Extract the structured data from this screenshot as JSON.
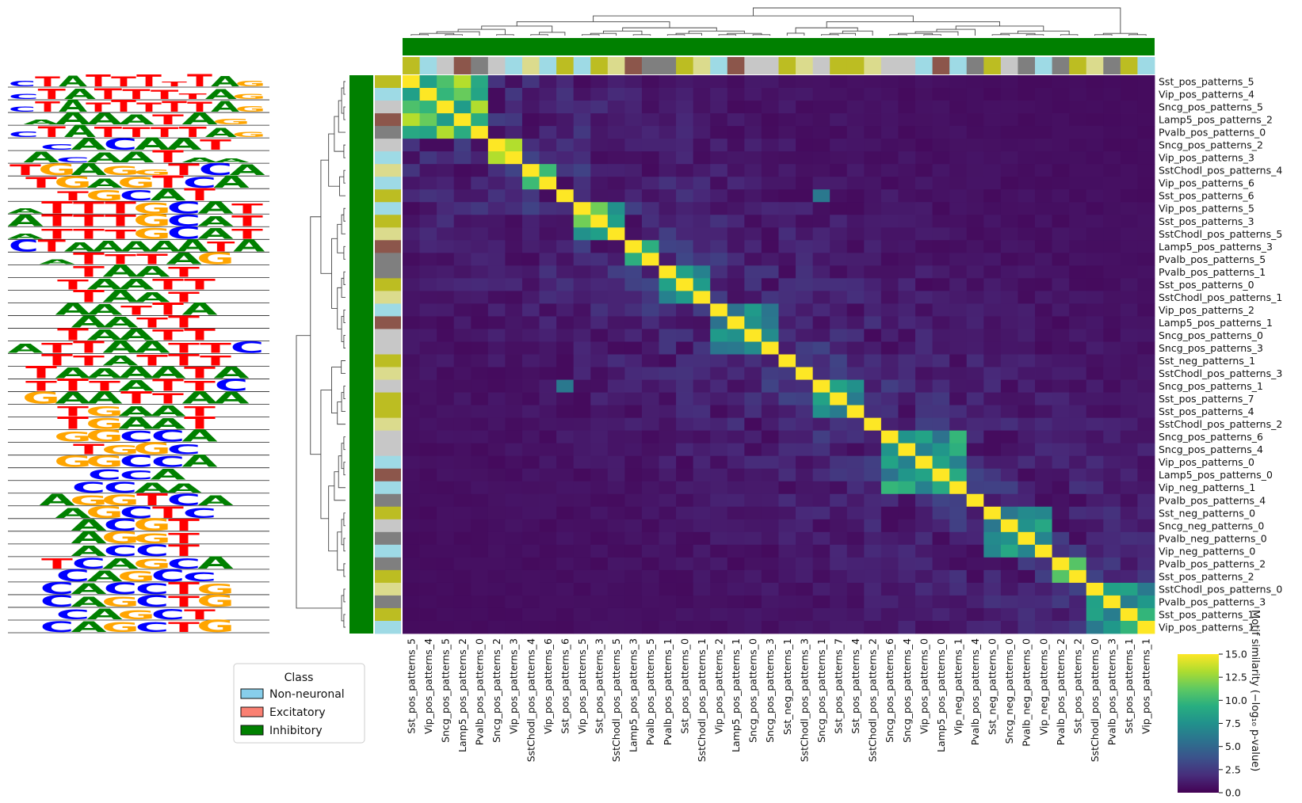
{
  "chart_data": {
    "type": "heatmap",
    "title": "",
    "colorbar": {
      "label": "Motif similarity (−log₁₀ p-value)",
      "min": 0.0,
      "max": 15.0,
      "ticks": [
        "0.0",
        "2.5",
        "5.0",
        "7.5",
        "10.0",
        "12.5",
        "15.0"
      ],
      "colormap": "viridis"
    },
    "legend": {
      "title": "Class",
      "entries": [
        {
          "label": "Non-neuronal",
          "color": "#87ceeb"
        },
        {
          "label": "Excitatory",
          "color": "#fa8072"
        },
        {
          "label": "Inhibitory",
          "color": "#008000"
        }
      ]
    },
    "subclass_colors": {
      "Sst": "#bcbd22",
      "Vip": "#9edae5",
      "Sncg": "#c7c7c7",
      "Lamp5": "#8c564b",
      "Pvalb": "#7f7f7f",
      "SstChodl": "#dbdb8d"
    },
    "labels": [
      "Sst_pos_patterns_5",
      "Vip_pos_patterns_4",
      "Sncg_pos_patterns_5",
      "Lamp5_pos_patterns_2",
      "Pvalb_pos_patterns_0",
      "Sncg_pos_patterns_2",
      "Vip_pos_patterns_3",
      "SstChodl_pos_patterns_4",
      "Vip_pos_patterns_6",
      "Sst_pos_patterns_6",
      "Vip_pos_patterns_5",
      "Sst_pos_patterns_3",
      "SstChodl_pos_patterns_5",
      "Lamp5_pos_patterns_3",
      "Pvalb_pos_patterns_5",
      "Pvalb_pos_patterns_1",
      "Sst_pos_patterns_0",
      "SstChodl_pos_patterns_1",
      "Vip_pos_patterns_2",
      "Lamp5_pos_patterns_1",
      "Sncg_pos_patterns_0",
      "Sncg_pos_patterns_3",
      "Sst_neg_patterns_1",
      "SstChodl_pos_patterns_3",
      "Sncg_pos_patterns_1",
      "Sst_pos_patterns_7",
      "Sst_pos_patterns_4",
      "SstChodl_pos_patterns_2",
      "Sncg_pos_patterns_6",
      "Sncg_pos_patterns_4",
      "Vip_pos_patterns_0",
      "Lamp5_pos_patterns_0",
      "Vip_neg_patterns_1",
      "Pvalb_pos_patterns_4",
      "Sst_neg_patterns_0",
      "Sncg_neg_patterns_0",
      "Pvalb_neg_patterns_0",
      "Vip_neg_patterns_0",
      "Pvalb_pos_patterns_2",
      "Sst_pos_patterns_2",
      "SstChodl_pos_patterns_0",
      "Pvalb_pos_patterns_3",
      "Sst_pos_patterns_1",
      "Vip_pos_patterns_1"
    ],
    "row_subclass": [
      "Sst",
      "Vip",
      "Sncg",
      "Lamp5",
      "Pvalb",
      "Sncg",
      "Vip",
      "SstChodl",
      "Vip",
      "Sst",
      "Vip",
      "Sst",
      "SstChodl",
      "Lamp5",
      "Pvalb",
      "Pvalb",
      "Sst",
      "SstChodl",
      "Vip",
      "Lamp5",
      "Sncg",
      "Sncg",
      "Sst",
      "SstChodl",
      "Sncg",
      "Sst",
      "Sst",
      "SstChodl",
      "Sncg",
      "Sncg",
      "Vip",
      "Lamp5",
      "Vip",
      "Pvalb",
      "Sst",
      "Sncg",
      "Pvalb",
      "Vip",
      "Pvalb",
      "Sst",
      "SstChodl",
      "Pvalb",
      "Sst",
      "Vip"
    ],
    "row_class": "Inhibitory",
    "clusters": [
      {
        "start": 0,
        "end": 4,
        "within": 14.5
      },
      {
        "start": 5,
        "end": 6,
        "within": 15
      },
      {
        "start": 7,
        "end": 8,
        "within": 14
      },
      {
        "start": 10,
        "end": 12,
        "within": 13
      },
      {
        "start": 13,
        "end": 14,
        "within": 12
      },
      {
        "start": 15,
        "end": 17,
        "within": 11
      },
      {
        "start": 18,
        "end": 21,
        "within": 9
      },
      {
        "start": 24,
        "end": 26,
        "within": 10
      },
      {
        "start": 28,
        "end": 32,
        "within": 10
      },
      {
        "start": 34,
        "end": 37,
        "within": 9
      },
      {
        "start": 38,
        "end": 39,
        "within": 11
      },
      {
        "start": 40,
        "end": 43,
        "within": 10
      }
    ],
    "off_diagonal_notes": [
      {
        "row": "Sst_pos_patterns_6",
        "col": "Sst_pos_patterns_6",
        "value": 15
      },
      {
        "row": "Sst_pos_patterns_6",
        "col": "Sncg_pos_patterns_1",
        "value": 6
      },
      {
        "row": "SstChodl_pos_patterns_3",
        "col": "SstChodl_pos_patterns_3",
        "value": 15
      }
    ],
    "motif_logos": {
      "alphabet": [
        "A",
        "C",
        "G",
        "T"
      ],
      "letter_colors": {
        "A": "#008000",
        "C": "#0000ff",
        "G": "#ffa500",
        "T": "#ff0000"
      },
      "rows": [
        "cTATTTtTAg",
        "cTATTTtAg",
        "cTATTTTTAg",
        "aAAATAg",
        "cTATTTTAg",
        "cACAAT",
        "AcAATaa",
        "TGAGgTCA",
        "TGAGTCA",
        "TGCAT",
        "aTTTGCAT",
        "ATTTGCAT",
        "aTTTGCAT",
        "CTAAAAATA",
        "aTTTAG",
        "TAAT",
        "TAATT",
        "TAAT",
        "AATTA",
        "AATT",
        "TAATT",
        "ATTAATTC",
        "TTATTT",
        "TAAAATA",
        "TTTATTC",
        "GAATTAA",
        "TGAAT",
        "TGAAT",
        "GGCCA",
        "TGGC",
        "GGCCA",
        "CCA",
        "CCAA",
        "AGGTCA",
        "AGCTC",
        "ACGT",
        "AGGT",
        "ACCT",
        "TCAGCA",
        "CAGCC",
        "CACCTG",
        "CAGCTG",
        "CAGCT",
        "CAGCTG"
      ]
    }
  }
}
